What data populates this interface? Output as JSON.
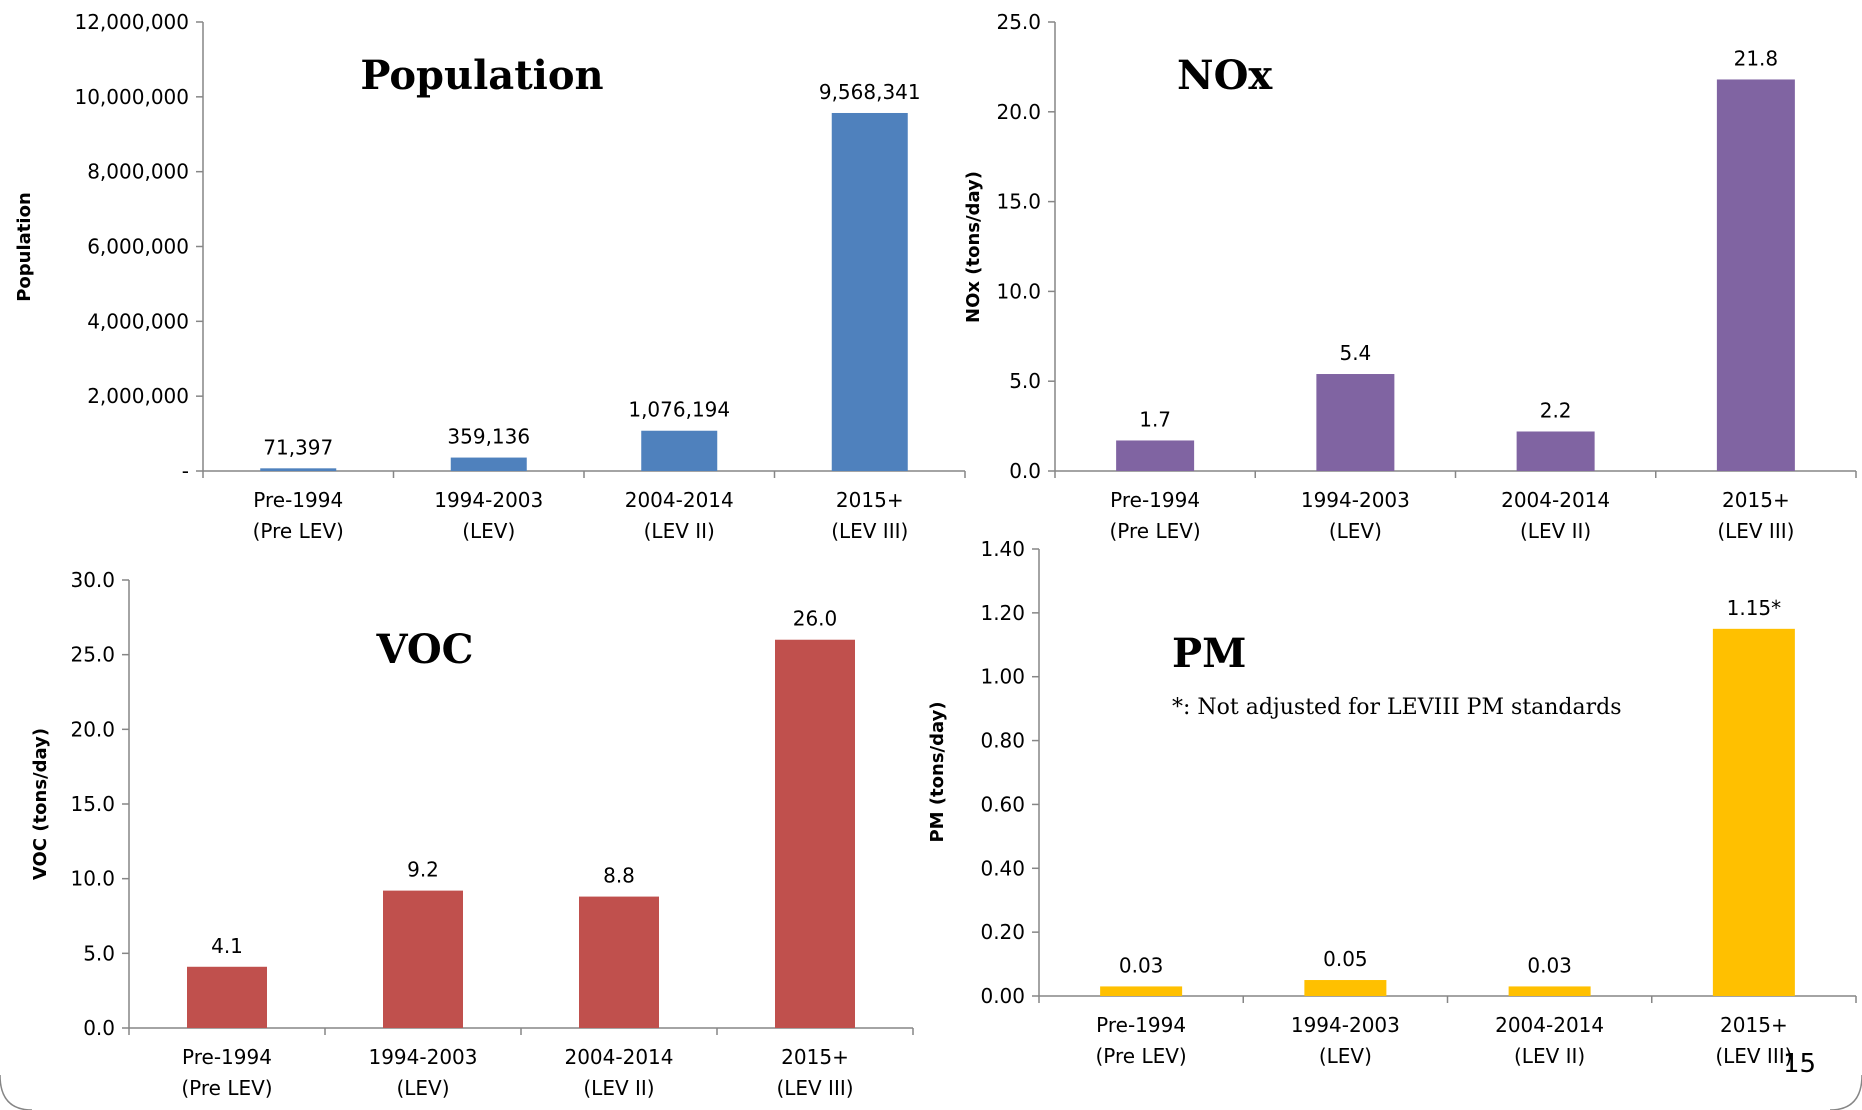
{
  "page_number": "15",
  "chart_data": [
    {
      "type": "bar",
      "title": "Population",
      "ylabel": "Population",
      "xlabel": "",
      "categories": [
        [
          "Pre-1994",
          "(Pre LEV)"
        ],
        [
          "1994-2003",
          "(LEV)"
        ],
        [
          "2004-2014",
          "(LEV II)"
        ],
        [
          "2015+",
          "(LEV III)"
        ]
      ],
      "values": [
        71397,
        359136,
        1076194,
        9568341
      ],
      "value_labels": [
        "71,397",
        "359,136",
        "1,076,194",
        "9,568,341"
      ],
      "ylim": [
        0,
        12000000
      ],
      "yticks": [
        "-",
        "2,000,000",
        "4,000,000",
        "6,000,000",
        "8,000,000",
        "10,000,000",
        "12,000,000"
      ],
      "color": "#4f81bd",
      "grid": false,
      "legend": false
    },
    {
      "type": "bar",
      "title": "NOx",
      "ylabel": "NOx (tons/day)",
      "xlabel": "",
      "categories": [
        [
          "Pre-1994",
          "(Pre LEV)"
        ],
        [
          "1994-2003",
          "(LEV)"
        ],
        [
          "2004-2014",
          "(LEV II)"
        ],
        [
          "2015+",
          "(LEV III)"
        ]
      ],
      "values": [
        1.7,
        5.4,
        2.2,
        21.8
      ],
      "value_labels": [
        "1.7",
        "5.4",
        "2.2",
        "21.8"
      ],
      "ylim": [
        0,
        25
      ],
      "yticks": [
        "0.0",
        "5.0",
        "10.0",
        "15.0",
        "20.0",
        "25.0"
      ],
      "color": "#8064a2",
      "grid": false,
      "legend": false
    },
    {
      "type": "bar",
      "title": "VOC",
      "ylabel": "VOC (tons/day)",
      "xlabel": "",
      "categories": [
        [
          "Pre-1994",
          "(Pre LEV)"
        ],
        [
          "1994-2003",
          "(LEV)"
        ],
        [
          "2004-2014",
          "(LEV II)"
        ],
        [
          "2015+",
          "(LEV III)"
        ]
      ],
      "values": [
        4.1,
        9.2,
        8.8,
        26.0
      ],
      "value_labels": [
        "4.1",
        "9.2",
        "8.8",
        "26.0"
      ],
      "ylim": [
        0,
        30
      ],
      "yticks": [
        "0.0",
        "5.0",
        "10.0",
        "15.0",
        "20.0",
        "25.0",
        "30.0"
      ],
      "color": "#c0504d",
      "grid": false,
      "legend": false
    },
    {
      "type": "bar",
      "title": "PM",
      "ylabel": "PM (tons/day)",
      "xlabel": "",
      "note": "*: Not adjusted for LEVIII PM standards",
      "categories": [
        [
          "Pre-1994",
          "(Pre LEV)"
        ],
        [
          "1994-2003",
          "(LEV)"
        ],
        [
          "2004-2014",
          "(LEV II)"
        ],
        [
          "2015+",
          "(LEV III)"
        ]
      ],
      "values": [
        0.03,
        0.05,
        0.03,
        1.15
      ],
      "value_labels": [
        "0.03",
        "0.05",
        "0.03",
        "1.15*"
      ],
      "ylim": [
        0,
        1.4
      ],
      "yticks": [
        "0.00",
        "0.20",
        "0.40",
        "0.60",
        "0.80",
        "1.00",
        "1.20",
        "1.40"
      ],
      "color": "#ffc000",
      "grid": false,
      "legend": false
    }
  ]
}
